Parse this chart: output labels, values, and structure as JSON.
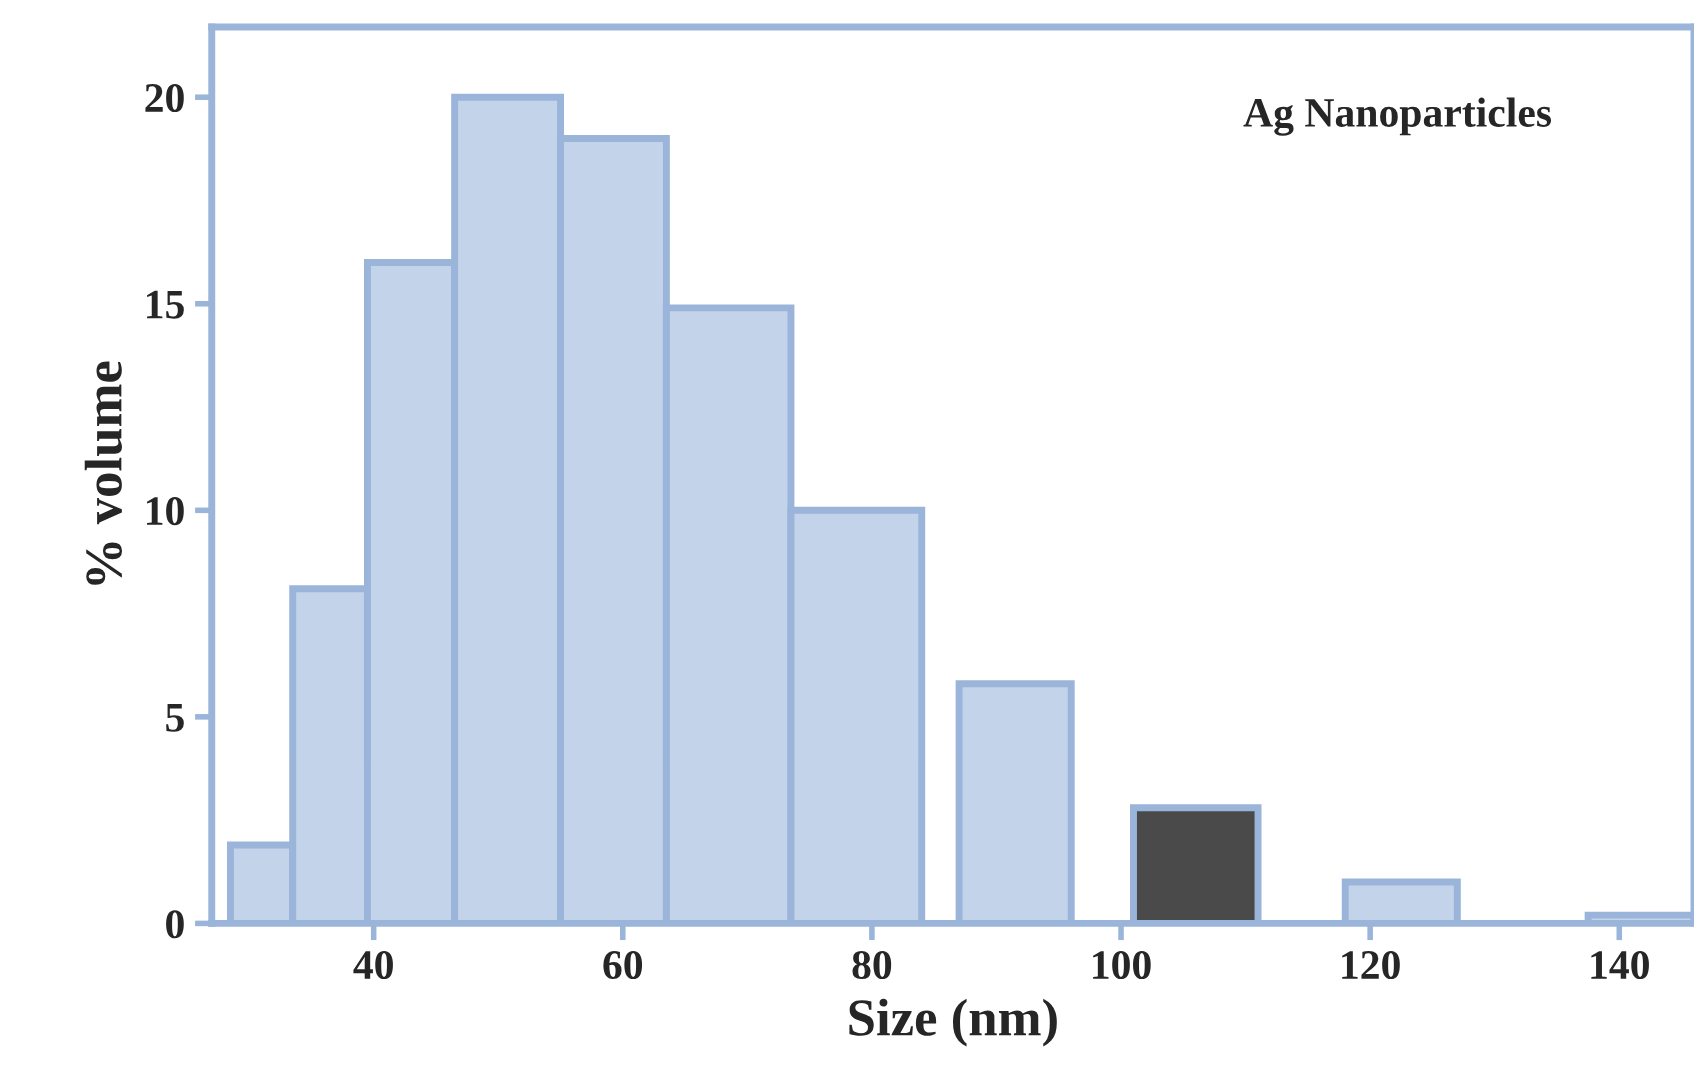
{
  "chart_data": {
    "type": "histogram",
    "xlabel": "Size (nm)",
    "ylabel": "% volume",
    "annotations": [
      "Ag Nanoparticles"
    ],
    "bins": [
      28.5,
      33.5,
      39.5,
      46.5,
      55,
      63.5,
      73.5,
      84,
      87,
      96,
      101,
      111,
      118,
      127,
      137.5,
      146
    ],
    "values": [
      1.9,
      8.1,
      16,
      20,
      19,
      14.9,
      10,
      0,
      5.8,
      0,
      2.8,
      0,
      1.0,
      0,
      0.2
    ],
    "colors": [
      "#c3d3ea",
      "#c3d3ea",
      "#c3d3ea",
      "#c3d3ea",
      "#c3d3ea",
      "#c3d3ea",
      "#c3d3ea",
      "#c3d3ea",
      "#c3d3ea",
      "#c3d3ea",
      "#4a4a4a",
      "#c3d3ea",
      "#c3d3ea",
      "#c3d3ea",
      "#c3d3ea"
    ],
    "xlim": [
      27,
      146
    ],
    "xticks": [
      40,
      60,
      80,
      100,
      120,
      140
    ],
    "ylim": [
      0,
      21.7
    ],
    "yticks": [
      0,
      5,
      10,
      15,
      20
    ],
    "grid": false,
    "legend": false
  }
}
